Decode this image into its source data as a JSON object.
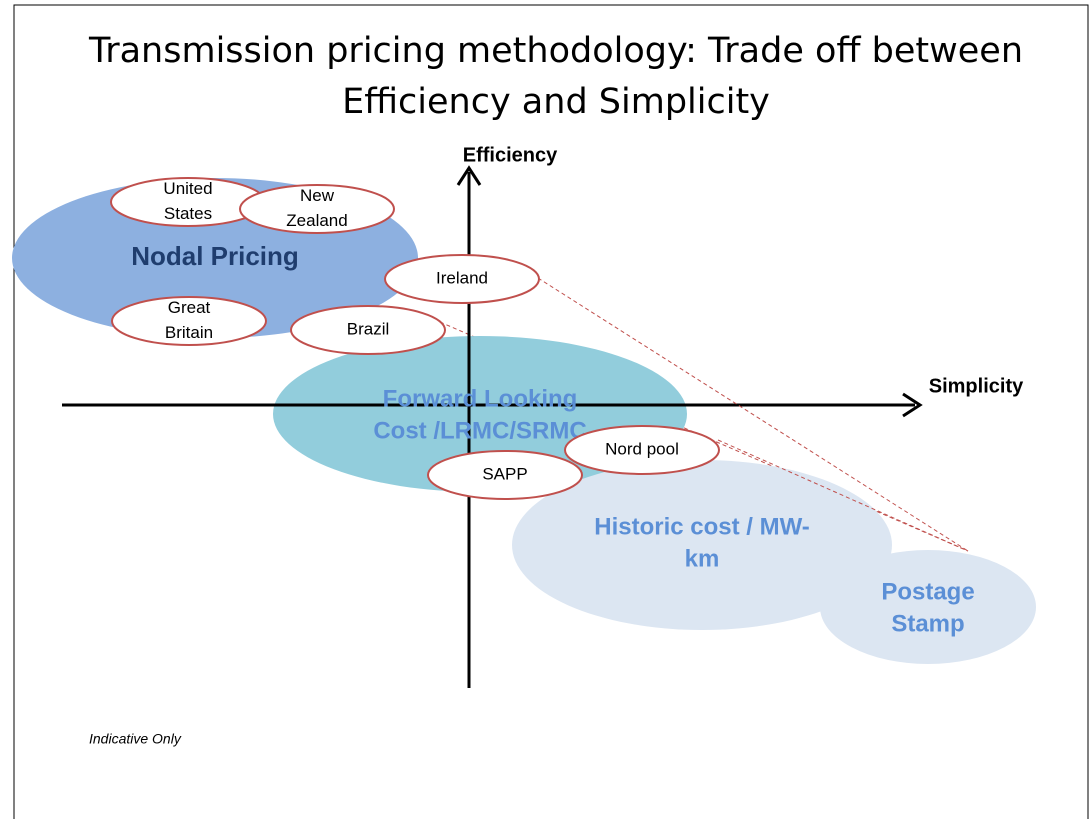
{
  "title": [
    "Transmission pricing methodology: Trade off between",
    "Efficiency and Simplicity"
  ],
  "axes": {
    "y_label": "Efficiency",
    "x_label": "Simplicity"
  },
  "regions": [
    {
      "label": [
        "Nodal Pricing"
      ]
    },
    {
      "label": [
        "Forward Looking",
        "Cost  /LRMC/SRMC"
      ]
    },
    {
      "label": [
        "Historic cost / MW-",
        "km"
      ]
    },
    {
      "label": [
        "Postage",
        "Stamp"
      ]
    }
  ],
  "countries": [
    {
      "label": [
        "United",
        "States"
      ]
    },
    {
      "label": [
        "New",
        "Zealand"
      ]
    },
    {
      "label": [
        "Ireland"
      ]
    },
    {
      "label": [
        "Great",
        "Britain"
      ]
    },
    {
      "label": [
        "Brazil"
      ]
    },
    {
      "label": [
        "Nord pool"
      ]
    },
    {
      "label": [
        "SAPP"
      ]
    }
  ],
  "note": "Indicative Only"
}
